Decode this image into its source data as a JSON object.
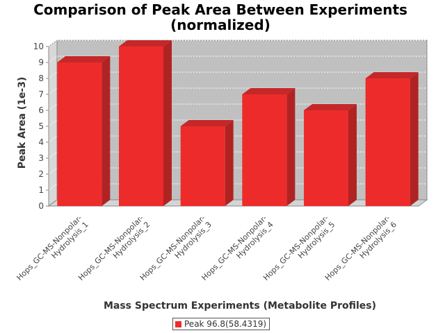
{
  "chart_data": {
    "type": "bar",
    "title": [
      "Comparison of Peak Area Between Experiments",
      "(normalized)"
    ],
    "xlabel": "Mass Spectrum Experiments (Metabolite Profiles)",
    "ylabel": "Peak Area (1e-3)",
    "ylim": [
      0,
      10
    ],
    "yticks": [
      "0",
      "1",
      "2",
      "3",
      "4",
      "5",
      "6",
      "7",
      "8",
      "9",
      "10"
    ],
    "categories": [
      [
        "Hops_GC-MS-Nonpolar-",
        "Hydrolysis_1"
      ],
      [
        "Hops_GC-MS-Nonpolar-",
        "Hydrolysis_2"
      ],
      [
        "Hops_GC-MS-Nonpolar-",
        "Hydrolysis_3"
      ],
      [
        "Hops_GC-MS-Nonpolar-",
        "Hydrolysis_4"
      ],
      [
        "Hops_GC-MS-Nonpolar-",
        "Hydrolysis_5"
      ],
      [
        "Hops_GC-MS-Nonpolar-",
        "Hydrolysis_6"
      ]
    ],
    "series": [
      {
        "name": "Peak 96.8(58.4319)",
        "values": [
          9,
          10,
          5,
          7,
          6,
          8
        ]
      }
    ],
    "grid": true,
    "legend_position": "bottom",
    "colors": {
      "bar_front": "#ee2b2b",
      "bar_side": "#b02323",
      "bar_top": "#c42828",
      "plot_background": "#c0c0c0",
      "plot_floor": "#d4d4d4"
    }
  },
  "legend": {
    "label": "Peak 96.8(58.4319)"
  }
}
